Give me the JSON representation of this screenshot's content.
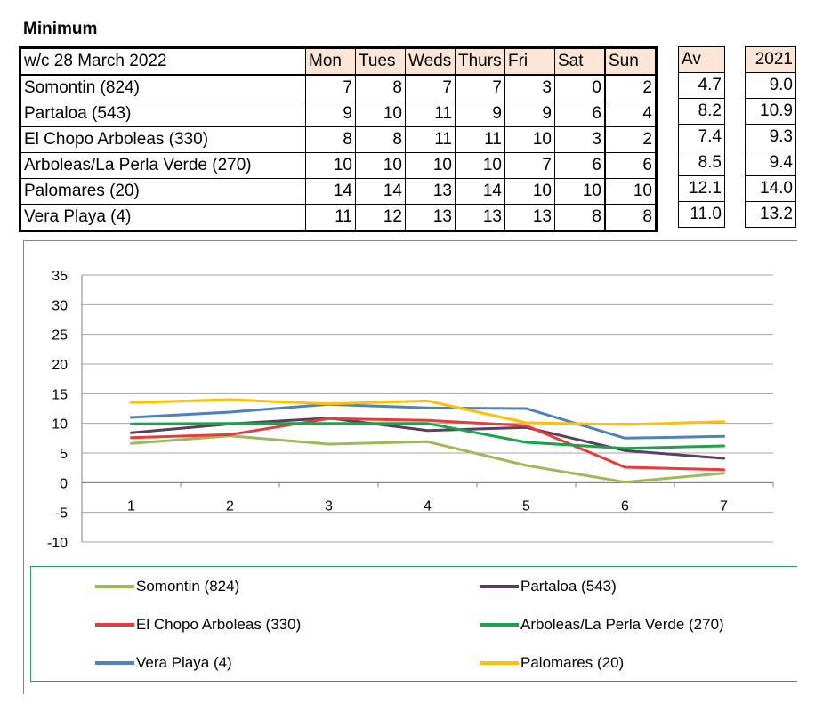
{
  "sheet_title": "Minimum",
  "table": {
    "week_label": "w/c 28 March 2022",
    "day_headers": [
      "Mon",
      "Tues",
      "Weds",
      "Thurs",
      "Fri",
      "Sat",
      "Sun"
    ],
    "avg_header": "Av",
    "prev_header": "2021",
    "rows": [
      {
        "name": "Somontin (824)",
        "values": [
          "7",
          "8",
          "7",
          "7",
          "3",
          "0",
          "2"
        ],
        "avg": "4.7",
        "prev": "9.0"
      },
      {
        "name": "Partaloa (543)",
        "values": [
          "9",
          "10",
          "11",
          "9",
          "9",
          "6",
          "4"
        ],
        "avg": "8.2",
        "prev": "10.9"
      },
      {
        "name": "El Chopo Arboleas (330)",
        "values": [
          "8",
          "8",
          "11",
          "11",
          "10",
          "3",
          "2"
        ],
        "avg": "7.4",
        "prev": "9.3"
      },
      {
        "name": "Arboleas/La Perla Verde (270)",
        "values": [
          "10",
          "10",
          "10",
          "10",
          "7",
          "6",
          "6"
        ],
        "avg": "8.5",
        "prev": "9.4"
      },
      {
        "name": "Palomares (20)",
        "values": [
          "14",
          "14",
          "13",
          "14",
          "10",
          "10",
          "10"
        ],
        "avg": "12.1",
        "prev": "14.0"
      },
      {
        "name": "Vera Playa (4)",
        "values": [
          "11",
          "12",
          "13",
          "13",
          "13",
          "8",
          "8"
        ],
        "avg": "11.0",
        "prev": "13.2"
      }
    ]
  },
  "chart_data": {
    "type": "line",
    "x": [
      1,
      2,
      3,
      4,
      5,
      6,
      7
    ],
    "x_tick_labels": [
      "1",
      "2",
      "3",
      "4",
      "5",
      "6",
      "7"
    ],
    "ylim": [
      -10,
      35
    ],
    "y_ticks": [
      -10,
      -5,
      0,
      5,
      10,
      15,
      20,
      25,
      30,
      35
    ],
    "y_tick_labels": [
      "-10",
      "-5",
      "0",
      "5",
      "10",
      "15",
      "20",
      "25",
      "30",
      "35"
    ],
    "grid": "horizontal",
    "legend_position": "bottom",
    "series": [
      {
        "name": "Somontin (824)",
        "color": "#9bbb59",
        "values": [
          6.6,
          7.9,
          6.5,
          6.9,
          2.9,
          0.1,
          1.6
        ]
      },
      {
        "name": "Partaloa (543)",
        "color": "#5b3f5e",
        "values": [
          8.4,
          9.9,
          10.9,
          8.8,
          9.3,
          5.4,
          4.1
        ]
      },
      {
        "name": "El Chopo Arboleas (330)",
        "color": "#e83a3a",
        "values": [
          7.6,
          8.1,
          10.8,
          10.5,
          9.6,
          2.6,
          2.2
        ]
      },
      {
        "name": "Arboleas/La Perla Verde (270)",
        "color": "#19a44a",
        "values": [
          9.9,
          10.0,
          10.0,
          10.0,
          6.8,
          5.8,
          6.2
        ]
      },
      {
        "name": "Vera Playa (4)",
        "color": "#4f81bd",
        "values": [
          11.0,
          11.9,
          13.2,
          12.6,
          12.5,
          7.5,
          7.8
        ]
      },
      {
        "name": "Palomares (20)",
        "color": "#ffc000",
        "values": [
          13.5,
          14.0,
          13.3,
          13.8,
          10.1,
          9.8,
          10.3
        ]
      }
    ]
  }
}
